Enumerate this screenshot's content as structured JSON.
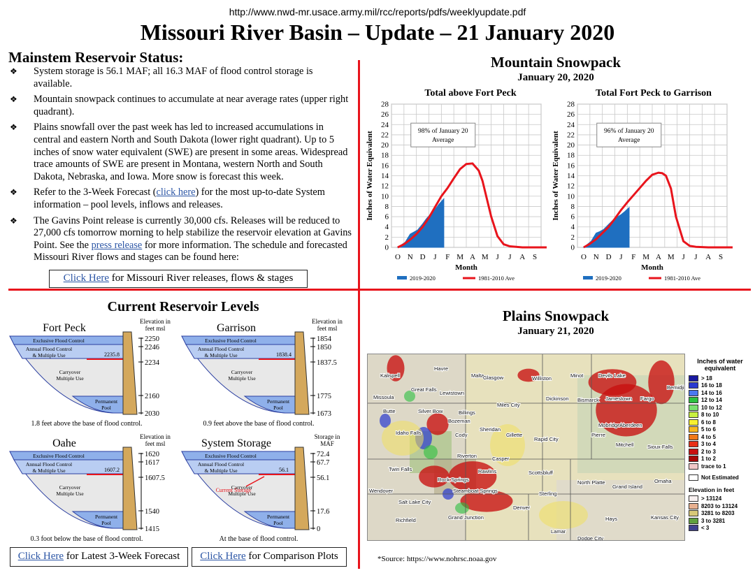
{
  "header": {
    "url": "http://www.nwd-mr.usace.army.mil/rcc/reports/pdfs/weeklyupdate.pdf",
    "title": "Missouri River Basin – Update – 21 January 2020"
  },
  "status": {
    "title": "Mainstem Reservoir Status:",
    "bullet_mark": "❖",
    "bullets": {
      "b1": "System storage is 56.1 MAF; all 16.3 MAF of flood control storage is available.",
      "b2": "Mountain snowpack continues to accumulate at near average rates (upper right quadrant).",
      "b3": "Plains snowfall over the past week has led to increased accumulations in central and eastern North and South Dakota (lower right quadrant). Up to 5 inches of snow water equivalent (SWE) are present in some areas. Widespread trace amounts of SWE are present in Montana, western North and South Dakota, Nebraska, and Iowa.  More snow is forecast this week.",
      "b4_pre": "Refer to the 3-Week Forecast (",
      "b4_link": "click here",
      "b4_post": ") for the most up-to-date System information – pool levels, inflows and releases.",
      "b5_pre": "The Gavins Point release is currently 30,000 cfs.  Releases will be reduced to 27,000 cfs tomorrow morning to help stabilize the reservoir elevation at Gavins Point.  See the ",
      "b5_link": "press release",
      "b5_post": " for more information.  The schedule and forecasted Missouri River flows and stages can be found here:"
    },
    "cta_link": "Click Here",
    "cta_rest": " for Missouri River releases, flows & stages"
  },
  "snowpack": {
    "title": "Mountain Snowpack",
    "date": "January 20, 2020",
    "ylabel": "Inches of Water Equivalent",
    "xlabel": "Month",
    "legend_current": "2019-2020",
    "legend_avg": "1981-2010 Ave",
    "chart1_title": "Total above Fort Peck",
    "chart1_note_1": "98% of January 20",
    "chart1_note_2": "Average",
    "chart2_title": "Total Fort Peck to Garrison",
    "chart2_note_1": "96% of January 20",
    "chart2_note_2": "Average"
  },
  "chart_data": [
    {
      "type": "area",
      "title": "Total above Fort Peck",
      "xlabel": "Month",
      "ylabel": "Inches of Water Equivalent",
      "categories": [
        "O",
        "N",
        "D",
        "J",
        "F",
        "M",
        "A",
        "M",
        "J",
        "J",
        "A",
        "S"
      ],
      "ylim": [
        0,
        28
      ],
      "yticks": [
        0,
        2,
        4,
        6,
        8,
        10,
        12,
        14,
        16,
        18,
        20,
        22,
        24,
        26,
        28
      ],
      "annotation": "98% of January 20 Average",
      "series": [
        {
          "name": "2019-2020",
          "style": "filled",
          "color": "#1f6fc0",
          "x": [
            0,
            0.3,
            0.6,
            1,
            1.3,
            1.6,
            2,
            2.3,
            2.6,
            3,
            3.3,
            3.7
          ],
          "values": [
            0,
            0.5,
            1.0,
            2.6,
            3.0,
            3.4,
            4.6,
            5.6,
            6.4,
            7.4,
            8.4,
            9.5
          ]
        },
        {
          "name": "1981-2010 Ave",
          "style": "line",
          "color": "#e8141c",
          "x": [
            0,
            0.5,
            1,
            1.5,
            2,
            2.5,
            3,
            3.5,
            4,
            4.5,
            5,
            5.5,
            6,
            6.5,
            6.8,
            7,
            7.5,
            8,
            8.5,
            9,
            9.5,
            10,
            11,
            12
          ],
          "values": [
            0,
            0.6,
            1.5,
            2.6,
            4.0,
            5.8,
            7.9,
            10.0,
            11.6,
            13.5,
            15.3,
            16.3,
            16.4,
            15.0,
            13.0,
            11.0,
            6.0,
            2.2,
            0.6,
            0.2,
            0.1,
            0,
            0,
            0
          ]
        }
      ]
    },
    {
      "type": "area",
      "title": "Total Fort Peck to Garrison",
      "xlabel": "Month",
      "ylabel": "Inches of Water Equivalent",
      "categories": [
        "O",
        "N",
        "D",
        "J",
        "F",
        "M",
        "A",
        "M",
        "J",
        "J",
        "A",
        "S"
      ],
      "ylim": [
        0,
        28
      ],
      "yticks": [
        0,
        2,
        4,
        6,
        8,
        10,
        12,
        14,
        16,
        18,
        20,
        22,
        24,
        26,
        28
      ],
      "annotation": "96% of January 20 Average",
      "series": [
        {
          "name": "2019-2020",
          "style": "filled",
          "color": "#1f6fc0",
          "x": [
            0,
            0.3,
            0.6,
            1,
            1.3,
            1.6,
            2,
            2.3,
            2.6,
            3,
            3.3,
            3.65
          ],
          "values": [
            0,
            0.6,
            1.2,
            2.8,
            3.1,
            3.5,
            4.5,
            5.2,
            5.8,
            6.4,
            7.0,
            7.8
          ]
        },
        {
          "name": "1981-2010 Ave",
          "style": "line",
          "color": "#e8141c",
          "x": [
            0,
            0.5,
            1,
            1.5,
            2,
            2.5,
            3,
            3.5,
            4,
            4.5,
            5,
            5.5,
            6,
            6.3,
            6.6,
            7,
            7.4,
            8,
            8.5,
            9,
            10,
            11,
            12
          ],
          "values": [
            0,
            0.7,
            1.6,
            2.8,
            4.0,
            5.6,
            7.3,
            8.8,
            10.2,
            11.6,
            13.0,
            14.2,
            14.6,
            14.5,
            14.0,
            11.5,
            6.0,
            1.2,
            0.3,
            0.1,
            0,
            0,
            0
          ]
        }
      ]
    }
  ],
  "reservoirs": {
    "title": "Current Reservoir Levels",
    "elev_head": "Elevation in feet msl",
    "storage_head": "Storage in MAF",
    "zones": {
      "exclusive": "Exclusive Flood Control",
      "annual_1": "Annual Flood Control",
      "annual_2": "& Multiple Use",
      "carryover_1": "Carryover",
      "carryover_2": "Multiple Use",
      "permanent_1": "Permanent",
      "permanent_2": "Pool"
    },
    "fort_peck": {
      "name": "Fort Peck",
      "level": "2235.8",
      "ticks": [
        "2250",
        "2246",
        "2234",
        "2160",
        "2030"
      ],
      "note": "1.8 feet above the base of flood control."
    },
    "garrison": {
      "name": "Garrison",
      "level": "1838.4",
      "ticks": [
        "1854",
        "1850",
        "1837.5",
        "1775",
        "1673"
      ],
      "note": "0.9 feet above the base of flood control."
    },
    "oahe": {
      "name": "Oahe",
      "level": "1607.2",
      "ticks": [
        "1620",
        "1617",
        "1607.5",
        "1540",
        "1415"
      ],
      "note": "0.3 foot below the base of flood control."
    },
    "system": {
      "name": "System Storage",
      "level": "56.1",
      "ticks": [
        "72.4",
        "67.7",
        "56.1",
        "17.6",
        "0"
      ],
      "current_label": "Current Storage",
      "note": "At the base of flood control."
    },
    "btn_forecast_link": "Click Here",
    "btn_forecast_rest": " for Latest 3-Week Forecast",
    "btn_compare_link": "Click Here",
    "btn_compare_rest": " for Comparison Plots"
  },
  "plains": {
    "title": "Plains Snowpack",
    "date": "January 21, 2020",
    "source": "*Source: https://www.nohrsc.noaa.gov",
    "legend_title_1": "Inches of water",
    "legend_title_2": "equivalent",
    "legend_items": [
      {
        "label": "> 18",
        "color": "#1a1aa0"
      },
      {
        "label": "16 to 18",
        "color": "#2a3ad0"
      },
      {
        "label": "14 to 16",
        "color": "#4a78f0"
      },
      {
        "label": "12 to 14",
        "color": "#2cc040"
      },
      {
        "label": "10 to 12",
        "color": "#7ae070"
      },
      {
        "label": "8 to 10",
        "color": "#c8f040"
      },
      {
        "label": "6 to 8",
        "color": "#f8f030"
      },
      {
        "label": "5 to 6",
        "color": "#f8b820"
      },
      {
        "label": "4 to 5",
        "color": "#f07818"
      },
      {
        "label": "3 to 4",
        "color": "#e83018"
      },
      {
        "label": "2 to 3",
        "color": "#c81010"
      },
      {
        "label": "1 to 2",
        "color": "#a80808"
      },
      {
        "label": "trace to 1",
        "color": "#f0c8c8"
      }
    ],
    "not_estimated": "Not Estimated",
    "elev_title": "Elevation in feet",
    "elev_items": [
      {
        "label": "> 13124",
        "color": "#f8f0f0"
      },
      {
        "label": "8203 to 13124",
        "color": "#e8b090"
      },
      {
        "label": "3281 to 8203",
        "color": "#d8c878"
      },
      {
        "label": "3 to 3281",
        "color": "#60a040"
      },
      {
        "label": "< 3",
        "color": "#404090"
      }
    ],
    "cities": [
      "Kalispell",
      "Havre",
      "Malta",
      "Glasgow",
      "Williston",
      "Minot",
      "Devils Lake",
      "Bemidji",
      "Great Falls",
      "Lewistown",
      "Dickinson",
      "Bismarck",
      "Jamestown",
      "Fargo",
      "Missoula",
      "Miles City",
      "Butte",
      "Silver Bow",
      "Billings",
      "Bozeman",
      "Mobridge",
      "Aberdeen",
      "Idaho Falls",
      "Cody",
      "Sheridan",
      "Gillette",
      "Rapid City",
      "Pierre",
      "Mitchell",
      "Sioux Falls",
      "Riverton",
      "Casper",
      "Rock Springs",
      "Rawlins",
      "Scottsbluff",
      "North Platte",
      "Grand Island",
      "Omaha",
      "Wendover",
      "Salt Lake City",
      "Steamboat Springs",
      "Sterling",
      "Denver",
      "Richfield",
      "Grand Junction",
      "Hays",
      "Kansas City",
      "Lamar",
      "Dodge City",
      "Twin Falls"
    ]
  }
}
